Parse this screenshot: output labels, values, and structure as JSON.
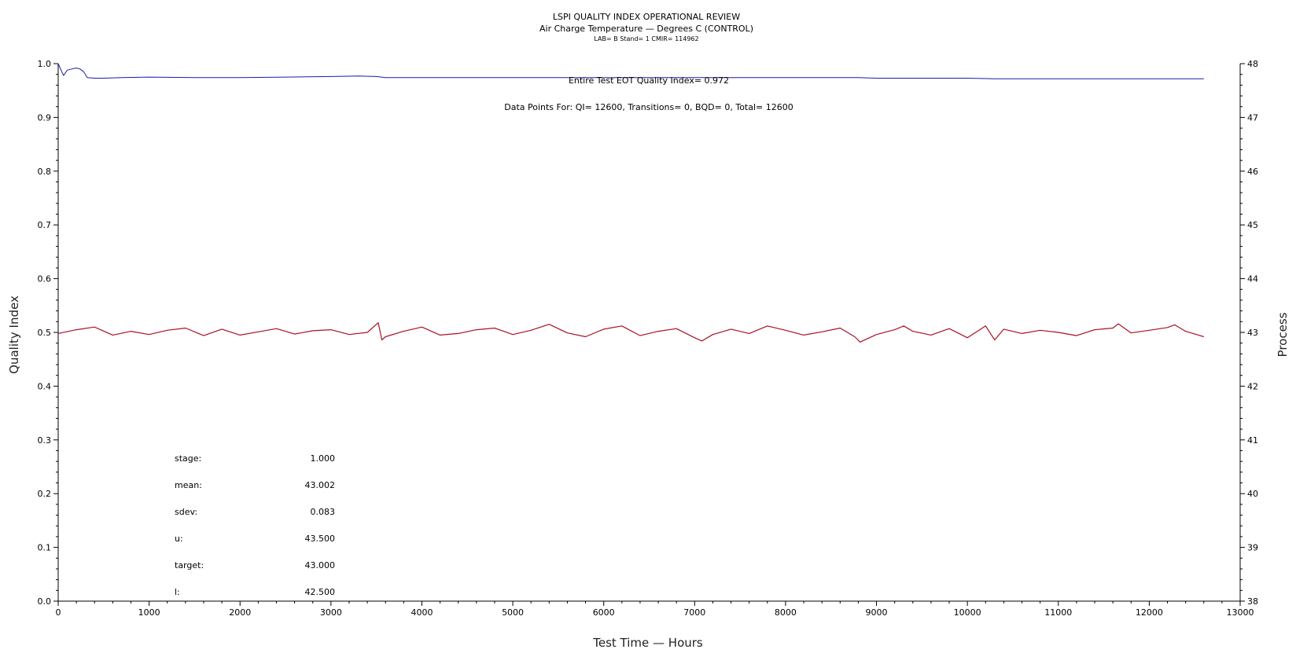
{
  "chart_data": {
    "type": "line",
    "title": "LSPI QUALITY INDEX OPERATIONAL REVIEW",
    "subtitle": "Air Charge Temperature — Degrees C (CONTROL)",
    "subsubtitle": "LAB= B Stand= 1 CMIR= 114962",
    "xlabel": "Test Time — Hours",
    "ylabel_left": "Quality Index",
    "ylabel_right": "Process",
    "xlim": [
      0,
      13000
    ],
    "xticks": [
      0,
      1000,
      2000,
      3000,
      4000,
      5000,
      6000,
      7000,
      8000,
      9000,
      10000,
      11000,
      12000,
      13000
    ],
    "ylim_left": [
      0.0,
      1.0
    ],
    "yticks_left": [
      "0.0",
      "0.1",
      "0.2",
      "0.3",
      "0.4",
      "0.5",
      "0.6",
      "0.7",
      "0.8",
      "0.9",
      "1.0"
    ],
    "ylim_right": [
      38,
      48
    ],
    "yticks_right": [
      "38",
      "39",
      "40",
      "41",
      "42",
      "43",
      "44",
      "45",
      "46",
      "47",
      "48"
    ],
    "grid": false,
    "series": [
      {
        "axis": "left",
        "color": "#1a1aa8",
        "x": [
          0,
          40,
          60,
          100,
          150,
          200,
          240,
          280,
          320,
          400,
          500,
          700,
          1000,
          1500,
          2000,
          2500,
          3000,
          3300,
          3500,
          3600,
          4000,
          5000,
          6000,
          7000,
          8000,
          8800,
          9000,
          10000,
          10300,
          11000,
          11400,
          12000,
          12600
        ],
        "values": [
          1.0,
          0.985,
          0.978,
          0.988,
          0.99,
          0.992,
          0.99,
          0.985,
          0.974,
          0.973,
          0.973,
          0.974,
          0.975,
          0.974,
          0.974,
          0.975,
          0.976,
          0.977,
          0.976,
          0.974,
          0.974,
          0.974,
          0.974,
          0.974,
          0.974,
          0.974,
          0.973,
          0.973,
          0.972,
          0.972,
          0.972,
          0.972,
          0.972
        ]
      },
      {
        "axis": "right",
        "color": "#aa1024",
        "x": [
          0,
          200,
          400,
          600,
          800,
          1000,
          1200,
          1400,
          1600,
          1800,
          2000,
          2200,
          2400,
          2600,
          2800,
          3000,
          3200,
          3400,
          3520,
          3560,
          3600,
          3800,
          4000,
          4200,
          4400,
          4600,
          4800,
          5000,
          5200,
          5400,
          5600,
          5800,
          6000,
          6200,
          6400,
          6600,
          6800,
          7000,
          7080,
          7200,
          7400,
          7600,
          7800,
          8000,
          8200,
          8400,
          8600,
          8760,
          8820,
          9000,
          9200,
          9300,
          9400,
          9600,
          9800,
          10000,
          10200,
          10300,
          10400,
          10600,
          10800,
          11000,
          11200,
          11400,
          11600,
          11660,
          11800,
          12000,
          12200,
          12280,
          12400,
          12600
        ],
        "values": [
          42.98,
          43.05,
          43.1,
          42.95,
          43.02,
          42.96,
          43.04,
          43.08,
          42.94,
          43.06,
          42.95,
          43.01,
          43.07,
          42.97,
          43.03,
          43.05,
          42.96,
          43.0,
          43.18,
          42.86,
          42.92,
          43.02,
          43.1,
          42.95,
          42.98,
          43.05,
          43.08,
          42.96,
          43.04,
          43.15,
          42.99,
          42.92,
          43.06,
          43.12,
          42.94,
          43.02,
          43.07,
          42.9,
          42.84,
          42.96,
          43.06,
          42.98,
          43.12,
          43.04,
          42.95,
          43.01,
          43.08,
          42.92,
          42.82,
          42.96,
          43.05,
          43.12,
          43.02,
          42.95,
          43.07,
          42.9,
          43.12,
          42.86,
          43.06,
          42.98,
          43.04,
          43.0,
          42.94,
          43.05,
          43.08,
          43.16,
          42.99,
          43.04,
          43.09,
          43.14,
          43.02,
          42.92
        ]
      }
    ],
    "annotations": {
      "eot_line": "Entire Test EOT Quality Index=   0.972",
      "data_points_line": "Data Points For: QI= 12600, Transitions=     0, BQD=     0, Total= 12600"
    },
    "stats": [
      {
        "label": "stage:",
        "value": "1.000"
      },
      {
        "label": "mean:",
        "value": "43.002"
      },
      {
        "label": "sdev:",
        "value": "0.083"
      },
      {
        "label": "u:",
        "value": "43.500"
      },
      {
        "label": "target:",
        "value": "43.000"
      },
      {
        "label": "l:",
        "value": "42.500"
      }
    ]
  }
}
